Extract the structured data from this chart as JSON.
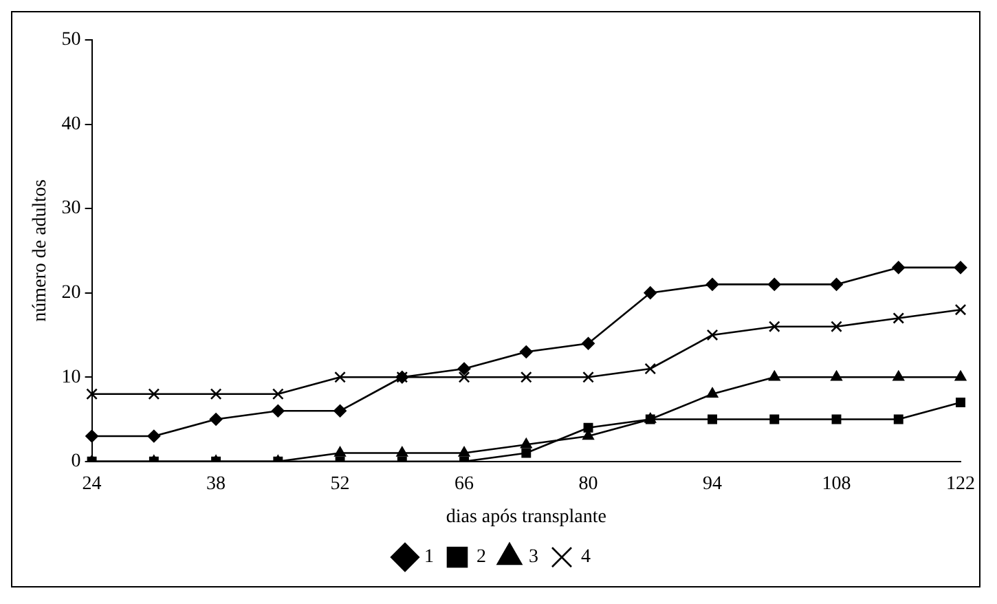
{
  "chart_data": {
    "type": "line",
    "xlabel": "dias após transplante",
    "ylabel": "número de adultos",
    "categories": [
      "24",
      null,
      "38",
      null,
      "52",
      null,
      "66",
      null,
      "80",
      null,
      "94",
      null,
      "108",
      null,
      "122"
    ],
    "series": [
      {
        "name": "1",
        "color": "#000000",
        "marker": "diamond",
        "values": [
          3,
          3,
          5,
          6,
          6,
          10,
          11,
          13,
          14,
          20,
          21,
          21,
          21,
          23,
          23
        ]
      },
      {
        "name": "2",
        "color": "#000000",
        "marker": "square",
        "values": [
          0,
          0,
          0,
          0,
          0,
          0,
          0,
          1,
          4,
          5,
          5,
          5,
          5,
          5,
          7
        ]
      },
      {
        "name": "3",
        "color": "#000000",
        "marker": "triangle",
        "values": [
          0,
          0,
          0,
          0,
          1,
          1,
          1,
          2,
          3,
          5,
          8,
          10,
          10,
          10,
          10
        ]
      },
      {
        "name": "4",
        "color": "#000000",
        "marker": "cross",
        "values": [
          8,
          8,
          8,
          8,
          10,
          10,
          10,
          10,
          10,
          11,
          15,
          16,
          16,
          17,
          18
        ]
      }
    ],
    "ylim": [
      0,
      50
    ],
    "yticks": [
      0,
      10,
      20,
      30,
      40,
      50
    ],
    "grid": false,
    "legend": "bottom",
    "line_style": "solid"
  }
}
